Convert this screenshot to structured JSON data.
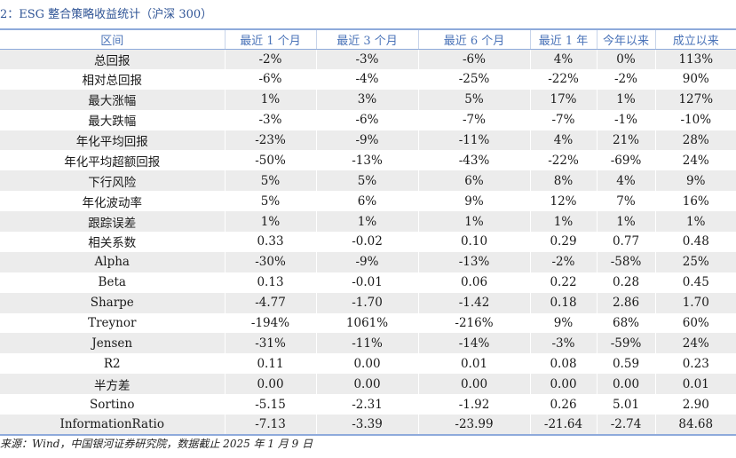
{
  "caption": "2：ESG 整合策略收益统计（沪深 300）",
  "headers": [
    "区间",
    "最近 1 个月",
    "最近 3 个月",
    "最近 6 个月",
    "最近 1 年",
    "今年以来",
    "成立以来"
  ],
  "rows": [
    [
      "总回报",
      "-2%",
      "-3%",
      "-6%",
      "4%",
      "0%",
      "113%"
    ],
    [
      "相对总回报",
      "-6%",
      "-4%",
      "-25%",
      "-22%",
      "-2%",
      "90%"
    ],
    [
      "最大涨幅",
      "1%",
      "3%",
      "5%",
      "17%",
      "1%",
      "127%"
    ],
    [
      "最大跌幅",
      "-3%",
      "-6%",
      "-7%",
      "-7%",
      "-1%",
      "-10%"
    ],
    [
      "年化平均回报",
      "-23%",
      "-9%",
      "-11%",
      "4%",
      "21%",
      "28%"
    ],
    [
      "年化平均超额回报",
      "-50%",
      "-13%",
      "-43%",
      "-22%",
      "-69%",
      "24%"
    ],
    [
      "下行风险",
      "5%",
      "5%",
      "6%",
      "8%",
      "4%",
      "9%"
    ],
    [
      "年化波动率",
      "5%",
      "6%",
      "9%",
      "12%",
      "7%",
      "16%"
    ],
    [
      "跟踪误差",
      "1%",
      "1%",
      "1%",
      "1%",
      "1%",
      "1%"
    ],
    [
      "相关系数",
      "0.33",
      "-0.02",
      "0.10",
      "0.29",
      "0.77",
      "0.48"
    ],
    [
      "Alpha",
      "-30%",
      "-9%",
      "-13%",
      "-2%",
      "-58%",
      "25%"
    ],
    [
      "Beta",
      "0.13",
      "-0.01",
      "0.06",
      "0.22",
      "0.28",
      "0.45"
    ],
    [
      "Sharpe",
      "-4.77",
      "-1.70",
      "-1.42",
      "0.18",
      "2.86",
      "1.70"
    ],
    [
      "Treynor",
      "-194%",
      "1061%",
      "-216%",
      "9%",
      "68%",
      "60%"
    ],
    [
      "Jensen",
      "-31%",
      "-11%",
      "-14%",
      "-3%",
      "-59%",
      "24%"
    ],
    [
      "R2",
      "0.11",
      "0.00",
      "0.01",
      "0.08",
      "0.59",
      "0.23"
    ],
    [
      "半方差",
      "0.00",
      "0.00",
      "0.00",
      "0.00",
      "0.00",
      "0.01"
    ],
    [
      "Sortino",
      "-5.15",
      "-2.31",
      "-1.92",
      "0.26",
      "5.01",
      "2.90"
    ],
    [
      "InformationRatio",
      "-7.13",
      "-3.39",
      "-23.99",
      "-21.64",
      "-2.74",
      "84.68"
    ]
  ],
  "source": "来源：Wind，中国银河证券研究院，数据截止 2025 年 1 月 9 日"
}
